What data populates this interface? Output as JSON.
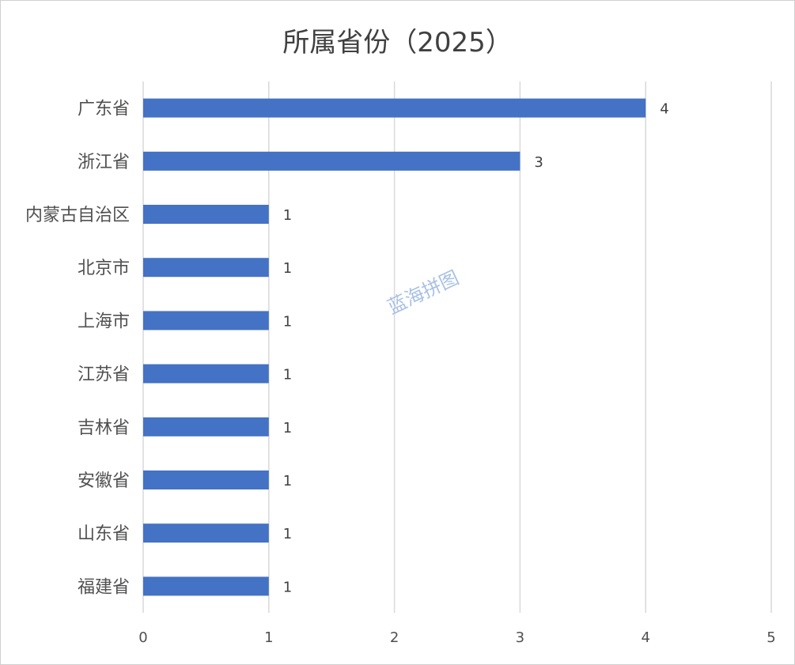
{
  "chart_data": {
    "type": "bar",
    "orientation": "horizontal",
    "title": "所属省份（2025）",
    "categories": [
      "广东省",
      "浙江省",
      "内蒙古自治区",
      "北京市",
      "上海市",
      "江苏省",
      "吉林省",
      "安徽省",
      "山东省",
      "福建省"
    ],
    "values": [
      4,
      3,
      1,
      1,
      1,
      1,
      1,
      1,
      1,
      1
    ],
    "xlim": [
      0,
      5
    ],
    "xticks": [
      0,
      1,
      2,
      3,
      4,
      5
    ],
    "grid": true,
    "legend": "none",
    "bar_color": "#4472c4",
    "data_labels": true
  },
  "watermark": "蓝海拼图"
}
